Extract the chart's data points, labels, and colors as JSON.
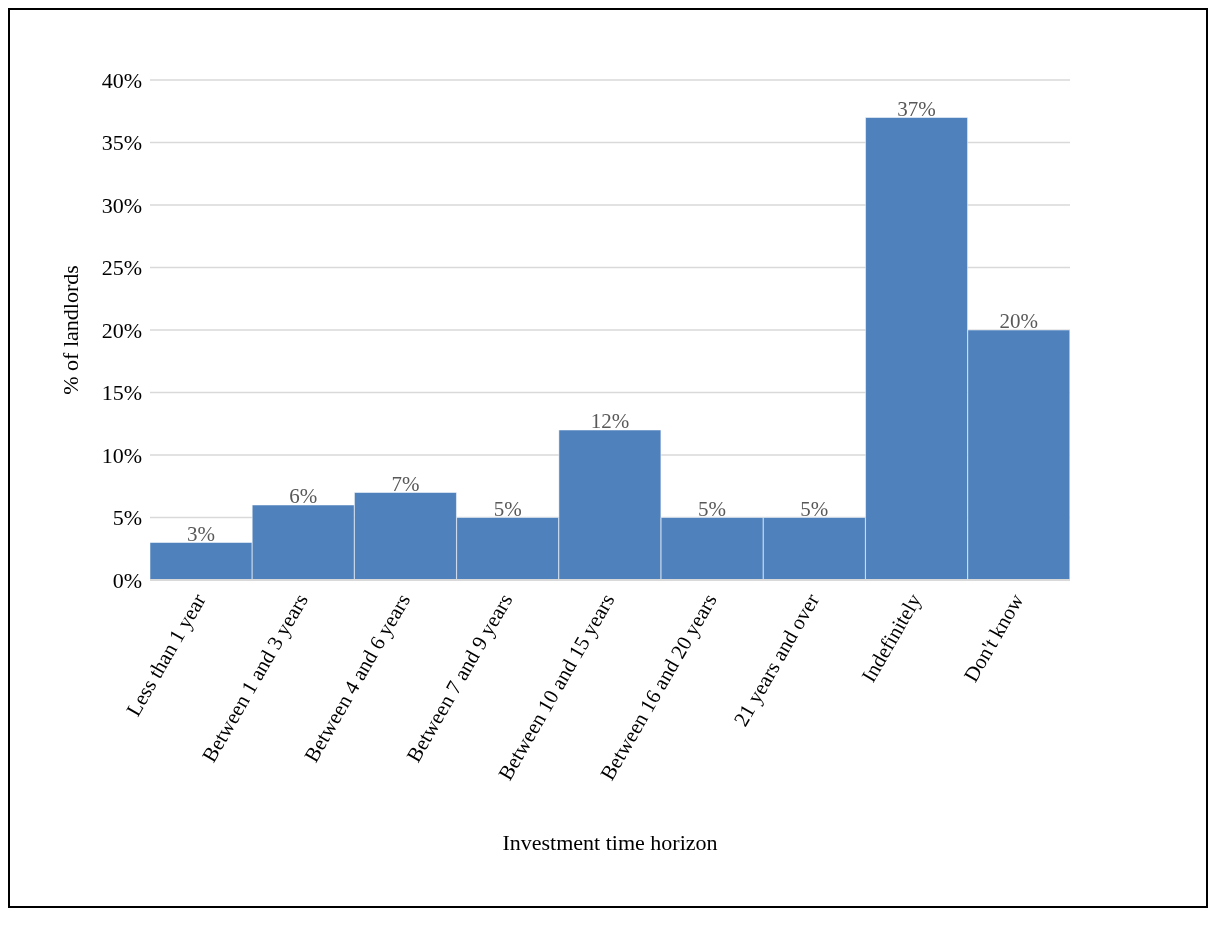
{
  "chart_data": {
    "type": "bar",
    "xlabel": "Investment time horizon",
    "ylabel": "% of landlords",
    "categories": [
      "Less than 1 year",
      "Between 1 and 3 years",
      "Between 4 and 6 years",
      "Between 7 and 9 years",
      "Between 10 and 15 years",
      "Between 16 and 20 years",
      "21 years and over",
      "Indefinitely",
      "Don't know"
    ],
    "values": [
      3,
      6,
      7,
      5,
      12,
      5,
      5,
      37,
      20
    ],
    "color": "#4f81bd",
    "ylim": [
      0,
      40
    ],
    "yticks": [
      {
        "value": 0,
        "label": "0%"
      },
      {
        "value": 5,
        "label": "5%"
      },
      {
        "value": 10,
        "label": "10%"
      },
      {
        "value": 15,
        "label": "15%"
      },
      {
        "value": 20,
        "label": "20%"
      },
      {
        "value": 25,
        "label": "25%"
      },
      {
        "value": 30,
        "label": "30%"
      },
      {
        "value": 35,
        "label": "35%"
      },
      {
        "value": 40,
        "label": "40%"
      }
    ],
    "value_labels": [
      "3%",
      "6%",
      "7%",
      "5%",
      "12%",
      "5%",
      "5%",
      "37%",
      "20%"
    ],
    "grid": "y",
    "legend": false
  }
}
